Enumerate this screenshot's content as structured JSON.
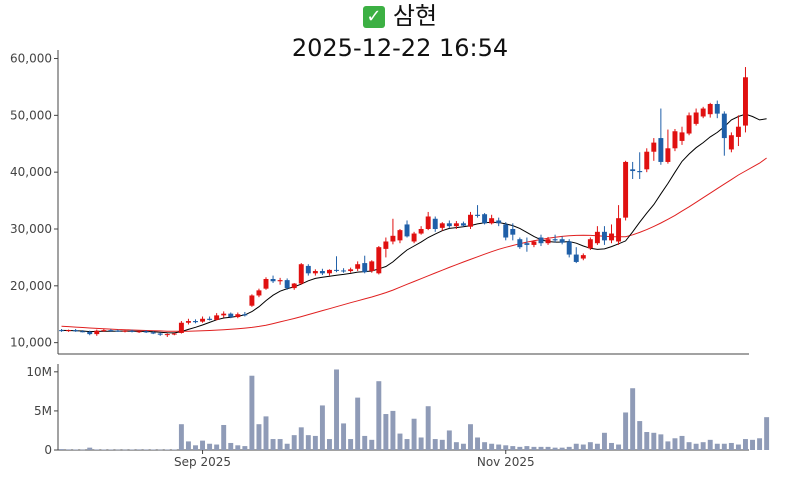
{
  "title": {
    "icon": "check-mark-icon",
    "name": "삼현",
    "datetime": "2025-12-22 16:54"
  },
  "colors": {
    "up": "#e01010",
    "down": "#1f5fa8",
    "ma_short": "#000000",
    "ma_long": "#e02020",
    "volume": "#8f9bb7",
    "check": "#3cb043"
  },
  "chart_data": {
    "type": "candlestick",
    "price_axis": {
      "ylim": [
        8000,
        61500
      ],
      "ticks": [
        10000,
        20000,
        30000,
        40000,
        50000,
        60000
      ],
      "tick_labels": [
        "10,000",
        "20,000",
        "30,000",
        "40,000",
        "50,000",
        "60,000"
      ]
    },
    "volume_axis": {
      "ylim": [
        0,
        11000000
      ],
      "ticks": [
        0,
        5000000,
        10000000
      ],
      "tick_labels": [
        "0",
        "5M",
        "10M"
      ]
    },
    "x_axis": {
      "tick_labels": [
        "Sep 2025",
        "Nov 2025"
      ],
      "tick_index": [
        20,
        63
      ]
    },
    "candles": [
      {
        "o": 12200,
        "h": 12400,
        "l": 11900,
        "c": 12100
      },
      {
        "o": 12100,
        "h": 12300,
        "l": 11900,
        "c": 12200
      },
      {
        "o": 12200,
        "h": 12400,
        "l": 11900,
        "c": 12000
      },
      {
        "o": 12000,
        "h": 12200,
        "l": 11800,
        "c": 11900
      },
      {
        "o": 11900,
        "h": 12100,
        "l": 11300,
        "c": 11500
      },
      {
        "o": 11500,
        "h": 12300,
        "l": 11200,
        "c": 12100
      },
      {
        "o": 12100,
        "h": 12400,
        "l": 11900,
        "c": 12200
      },
      {
        "o": 12200,
        "h": 12400,
        "l": 11900,
        "c": 12100
      },
      {
        "o": 12100,
        "h": 12300,
        "l": 11900,
        "c": 12000
      },
      {
        "o": 12000,
        "h": 12200,
        "l": 11800,
        "c": 12100
      },
      {
        "o": 12100,
        "h": 12300,
        "l": 11800,
        "c": 11900
      },
      {
        "o": 11900,
        "h": 12100,
        "l": 11700,
        "c": 12000
      },
      {
        "o": 12000,
        "h": 12200,
        "l": 11700,
        "c": 11800
      },
      {
        "o": 11800,
        "h": 12000,
        "l": 11500,
        "c": 11600
      },
      {
        "o": 11600,
        "h": 11800,
        "l": 11200,
        "c": 11400
      },
      {
        "o": 11400,
        "h": 11600,
        "l": 11000,
        "c": 11500
      },
      {
        "o": 11500,
        "h": 11700,
        "l": 11300,
        "c": 11600
      },
      {
        "o": 11700,
        "h": 13800,
        "l": 11600,
        "c": 13500
      },
      {
        "o": 13500,
        "h": 14200,
        "l": 13200,
        "c": 13800
      },
      {
        "o": 13800,
        "h": 14100,
        "l": 13400,
        "c": 13600
      },
      {
        "o": 13700,
        "h": 14600,
        "l": 13500,
        "c": 14200
      },
      {
        "o": 14200,
        "h": 14600,
        "l": 13900,
        "c": 14000
      },
      {
        "o": 14000,
        "h": 15200,
        "l": 13900,
        "c": 14800
      },
      {
        "o": 14800,
        "h": 15500,
        "l": 14400,
        "c": 15100
      },
      {
        "o": 15100,
        "h": 15300,
        "l": 14300,
        "c": 14500
      },
      {
        "o": 14500,
        "h": 15300,
        "l": 14300,
        "c": 15000
      },
      {
        "o": 15000,
        "h": 15400,
        "l": 14600,
        "c": 14800
      },
      {
        "o": 16500,
        "h": 18500,
        "l": 16300,
        "c": 18300
      },
      {
        "o": 18300,
        "h": 19500,
        "l": 18000,
        "c": 19200
      },
      {
        "o": 19500,
        "h": 21500,
        "l": 19300,
        "c": 21200
      },
      {
        "o": 21200,
        "h": 21800,
        "l": 20500,
        "c": 20800
      },
      {
        "o": 20800,
        "h": 21400,
        "l": 20200,
        "c": 21000
      },
      {
        "o": 21000,
        "h": 21300,
        "l": 19300,
        "c": 19600
      },
      {
        "o": 19600,
        "h": 20500,
        "l": 19300,
        "c": 20400
      },
      {
        "o": 20400,
        "h": 24000,
        "l": 20200,
        "c": 23800
      },
      {
        "o": 23500,
        "h": 23800,
        "l": 21800,
        "c": 22200
      },
      {
        "o": 22200,
        "h": 22900,
        "l": 21800,
        "c": 22600
      },
      {
        "o": 22600,
        "h": 23000,
        "l": 21900,
        "c": 22200
      },
      {
        "o": 22200,
        "h": 22900,
        "l": 21800,
        "c": 22800
      },
      {
        "o": 22800,
        "h": 25200,
        "l": 22400,
        "c": 22700
      },
      {
        "o": 22700,
        "h": 23100,
        "l": 22300,
        "c": 22600
      },
      {
        "o": 22600,
        "h": 23200,
        "l": 22300,
        "c": 22900
      },
      {
        "o": 23000,
        "h": 24300,
        "l": 22600,
        "c": 23800
      },
      {
        "o": 24000,
        "h": 25300,
        "l": 22200,
        "c": 22400
      },
      {
        "o": 22600,
        "h": 24500,
        "l": 22300,
        "c": 24300
      },
      {
        "o": 22200,
        "h": 27000,
        "l": 22000,
        "c": 26800
      },
      {
        "o": 26500,
        "h": 28500,
        "l": 25000,
        "c": 27800
      },
      {
        "o": 27800,
        "h": 31800,
        "l": 27300,
        "c": 28800
      },
      {
        "o": 28000,
        "h": 30000,
        "l": 27500,
        "c": 29800
      },
      {
        "o": 30800,
        "h": 31500,
        "l": 28500,
        "c": 28700
      },
      {
        "o": 27800,
        "h": 29500,
        "l": 27500,
        "c": 29200
      },
      {
        "o": 29200,
        "h": 30500,
        "l": 29000,
        "c": 30000
      },
      {
        "o": 30000,
        "h": 33000,
        "l": 29800,
        "c": 32200
      },
      {
        "o": 31800,
        "h": 32200,
        "l": 29500,
        "c": 30000
      },
      {
        "o": 30200,
        "h": 31200,
        "l": 29700,
        "c": 31000
      },
      {
        "o": 31000,
        "h": 31500,
        "l": 30200,
        "c": 30500
      },
      {
        "o": 30500,
        "h": 31400,
        "l": 30000,
        "c": 31000
      },
      {
        "o": 31000,
        "h": 31300,
        "l": 30400,
        "c": 30600
      },
      {
        "o": 30400,
        "h": 33000,
        "l": 30000,
        "c": 32500
      },
      {
        "o": 32500,
        "h": 34200,
        "l": 32000,
        "c": 32300
      },
      {
        "o": 32600,
        "h": 32800,
        "l": 30800,
        "c": 31000
      },
      {
        "o": 31000,
        "h": 32500,
        "l": 30800,
        "c": 31900
      },
      {
        "o": 31500,
        "h": 32000,
        "l": 30500,
        "c": 31000
      },
      {
        "o": 30800,
        "h": 31200,
        "l": 28000,
        "c": 28500
      },
      {
        "o": 30000,
        "h": 31000,
        "l": 28000,
        "c": 29000
      },
      {
        "o": 28200,
        "h": 28500,
        "l": 26500,
        "c": 26800
      },
      {
        "o": 27500,
        "h": 28500,
        "l": 26000,
        "c": 27200
      },
      {
        "o": 27200,
        "h": 28000,
        "l": 26800,
        "c": 27800
      },
      {
        "o": 28500,
        "h": 29000,
        "l": 27000,
        "c": 27500
      },
      {
        "o": 27500,
        "h": 28600,
        "l": 27200,
        "c": 28200
      },
      {
        "o": 28200,
        "h": 29000,
        "l": 27600,
        "c": 28000
      },
      {
        "o": 28200,
        "h": 28700,
        "l": 27300,
        "c": 27600
      },
      {
        "o": 27800,
        "h": 28200,
        "l": 25000,
        "c": 25500
      },
      {
        "o": 25500,
        "h": 26800,
        "l": 24000,
        "c": 24200
      },
      {
        "o": 24800,
        "h": 25700,
        "l": 24500,
        "c": 25400
      },
      {
        "o": 26600,
        "h": 28500,
        "l": 26300,
        "c": 28200
      },
      {
        "o": 27500,
        "h": 30500,
        "l": 27200,
        "c": 29500
      },
      {
        "o": 29500,
        "h": 30500,
        "l": 27200,
        "c": 28000
      },
      {
        "o": 28000,
        "h": 30800,
        "l": 27500,
        "c": 29200
      },
      {
        "o": 27800,
        "h": 34200,
        "l": 27200,
        "c": 31900
      },
      {
        "o": 32000,
        "h": 42000,
        "l": 31500,
        "c": 41800
      },
      {
        "o": 40500,
        "h": 41800,
        "l": 38800,
        "c": 40200
      },
      {
        "o": 40200,
        "h": 43500,
        "l": 38800,
        "c": 40000
      },
      {
        "o": 40500,
        "h": 44200,
        "l": 40000,
        "c": 43600
      },
      {
        "o": 43600,
        "h": 46000,
        "l": 42000,
        "c": 45200
      },
      {
        "o": 46000,
        "h": 51200,
        "l": 41300,
        "c": 41800
      },
      {
        "o": 41800,
        "h": 47500,
        "l": 41500,
        "c": 44200
      },
      {
        "o": 44200,
        "h": 47600,
        "l": 43700,
        "c": 47200
      },
      {
        "o": 45500,
        "h": 48000,
        "l": 44800,
        "c": 47000
      },
      {
        "o": 46800,
        "h": 50500,
        "l": 46500,
        "c": 50000
      },
      {
        "o": 48500,
        "h": 51200,
        "l": 48200,
        "c": 50500
      },
      {
        "o": 49800,
        "h": 51500,
        "l": 49500,
        "c": 51200
      },
      {
        "o": 50200,
        "h": 52200,
        "l": 49600,
        "c": 52000
      },
      {
        "o": 52000,
        "h": 52600,
        "l": 49500,
        "c": 50300
      },
      {
        "o": 50300,
        "h": 50700,
        "l": 42900,
        "c": 46000
      },
      {
        "o": 44000,
        "h": 47000,
        "l": 43500,
        "c": 46500
      },
      {
        "o": 46200,
        "h": 50000,
        "l": 44600,
        "c": 48000
      },
      {
        "o": 48200,
        "h": 58500,
        "l": 47000,
        "c": 56700
      }
    ],
    "volume": [
      0.12,
      0.08,
      0.06,
      0.05,
      0.3,
      0.07,
      0.06,
      0.06,
      0.05,
      0.05,
      0.06,
      0.08,
      0.07,
      0.06,
      0.05,
      0.06,
      0.06,
      3.3,
      1.1,
      0.6,
      1.2,
      0.8,
      0.7,
      3.2,
      0.9,
      0.6,
      0.5,
      9.5,
      3.3,
      4.3,
      1.4,
      1.4,
      0.8,
      1.9,
      2.9,
      1.9,
      1.8,
      5.7,
      1.4,
      10.3,
      3.4,
      1.4,
      6.7,
      1.8,
      1.3,
      8.8,
      4.6,
      5.0,
      2.1,
      1.4,
      4.0,
      1.6,
      5.6,
      1.4,
      1.3,
      2.5,
      1.0,
      0.8,
      3.3,
      1.6,
      1.0,
      0.8,
      0.7,
      0.6,
      0.5,
      0.4,
      0.5,
      0.4,
      0.4,
      0.4,
      0.3,
      0.3,
      0.4,
      0.8,
      0.7,
      1.0,
      0.8,
      2.2,
      0.9,
      0.7,
      4.8,
      7.9,
      3.7,
      2.3,
      2.2,
      2.0,
      1.1,
      1.5,
      1.8,
      1.0,
      0.8,
      1.0,
      1.3,
      0.8,
      0.8,
      0.9,
      0.7,
      1.4,
      1.3,
      1.5,
      4.2
    ],
    "volume_unit": "millions",
    "ma_short": [
      12150,
      12140,
      12100,
      12050,
      11950,
      11980,
      12000,
      12020,
      12030,
      12030,
      12010,
      11990,
      11960,
      11900,
      11820,
      11730,
      11720,
      11950,
      12330,
      12700,
      13110,
      13560,
      14020,
      14330,
      14450,
      14650,
      14880,
      15460,
      16330,
      17400,
      18340,
      19060,
      19510,
      19800,
      20300,
      20880,
      21300,
      21520,
      21700,
      21860,
      22000,
      22180,
      22420,
      22500,
      22600,
      22980,
      23400,
      24200,
      25300,
      26300,
      27000,
      27700,
      28500,
      29100,
      29700,
      30100,
      30250,
      30400,
      30600,
      30900,
      31100,
      31200,
      31150,
      30900,
      30600,
      30100,
      29400,
      28700,
      28100,
      27800,
      27700,
      27700,
      27800,
      27500,
      27000,
      26600,
      26400,
      26500,
      26900,
      27400,
      27900,
      29500,
      31200,
      32800,
      34300,
      36200,
      38000,
      40000,
      41900,
      43200,
      44300,
      45200,
      46200,
      47000,
      48000,
      49200,
      49800,
      50200,
      49800,
      49200,
      49400
    ],
    "ma_long": [
      12900,
      12820,
      12740,
      12660,
      12580,
      12510,
      12440,
      12380,
      12320,
      12270,
      12220,
      12180,
      12140,
      12100,
      12060,
      12020,
      11990,
      11990,
      12010,
      12040,
      12080,
      12130,
      12200,
      12280,
      12370,
      12460,
      12560,
      12680,
      12850,
      13070,
      13350,
      13650,
      13950,
      14250,
      14580,
      14930,
      15280,
      15630,
      15980,
      16330,
      16680,
      17020,
      17360,
      17700,
      18030,
      18400,
      18800,
      19250,
      19750,
      20260,
      20760,
      21260,
      21770,
      22260,
      22750,
      23240,
      23720,
      24190,
      24650,
      25100,
      25560,
      26010,
      26420,
      26780,
      27100,
      27420,
      27690,
      27930,
      28150,
      28360,
      28540,
      28700,
      28820,
      28880,
      28900,
      28870,
      28800,
      28720,
      28650,
      28620,
      28650,
      28980,
      29400,
      29900,
      30450,
      31050,
      31700,
      32400,
      33150,
      33900,
      34700,
      35500,
      36300,
      37100,
      37900,
      38700,
      39500,
      40200,
      40900,
      41600,
      42500
    ]
  }
}
